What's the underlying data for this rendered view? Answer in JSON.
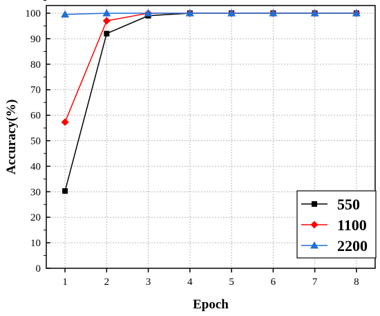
{
  "chart_data": {
    "type": "line",
    "xlabel": "Epoch",
    "ylabel": "Accuracy(%)",
    "x": [
      1,
      2,
      3,
      4,
      5,
      6,
      7,
      8
    ],
    "xlim": [
      0.55,
      8.45
    ],
    "ylim": [
      0,
      103
    ],
    "xticks": [
      1,
      2,
      3,
      4,
      5,
      6,
      7,
      8
    ],
    "yticks": [
      0,
      10,
      20,
      30,
      40,
      50,
      60,
      70,
      80,
      90,
      100
    ],
    "grid": true,
    "legend_position": "bottom-right",
    "series": [
      {
        "name": "550",
        "color": "#000000",
        "marker": "square",
        "values": [
          30.3,
          92.0,
          99.0,
          100,
          100,
          100,
          100,
          100
        ]
      },
      {
        "name": "1100",
        "color": "#ff0000",
        "marker": "diamond",
        "values": [
          57.3,
          97.0,
          100,
          100,
          100,
          100,
          100,
          100
        ]
      },
      {
        "name": "2200",
        "color": "#1f6fd6",
        "marker": "triangle",
        "values": [
          99.5,
          100,
          100,
          100,
          100,
          100,
          100,
          100
        ]
      }
    ]
  }
}
